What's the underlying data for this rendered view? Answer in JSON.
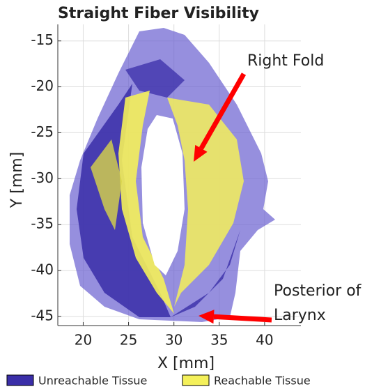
{
  "chart_data": {
    "type": "surface",
    "title": "Straight Fiber Visibility",
    "x_label": "X [mm]",
    "y_label": "Y [mm]",
    "xlim": [
      17.2,
      44
    ],
    "xticks": [
      20,
      25,
      30,
      35,
      40
    ],
    "ylim": [
      -46,
      -13.2
    ],
    "yticks": [
      -15,
      -20,
      -25,
      -30,
      -35,
      -40,
      -45
    ],
    "grid": true,
    "series": [
      {
        "name": "Unreachable Tissue",
        "color": "#3a2ea8"
      },
      {
        "name": "Reachable Tissue",
        "color": "#f4f05a"
      }
    ],
    "annotations": [
      {
        "text": "Right Fold",
        "arrow_color": "#ff0000"
      },
      {
        "lines": [
          "Posterior of",
          "Larynx"
        ],
        "arrow_color": "#ff0000"
      }
    ]
  }
}
